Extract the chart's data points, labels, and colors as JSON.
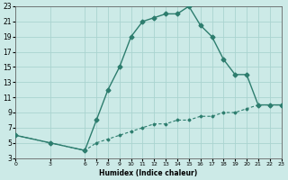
{
  "title": "",
  "xlabel": "Humidex (Indice chaleur)",
  "xlim": [
    0,
    23
  ],
  "ylim": [
    3,
    23
  ],
  "xticks": [
    0,
    3,
    6,
    7,
    8,
    9,
    10,
    11,
    12,
    13,
    14,
    15,
    16,
    17,
    18,
    19,
    20,
    21,
    22,
    23
  ],
  "yticks": [
    3,
    5,
    7,
    9,
    11,
    13,
    15,
    17,
    19,
    21,
    23
  ],
  "line1_x": [
    0,
    3,
    6,
    7,
    8,
    9,
    10,
    11,
    12,
    13,
    14,
    15,
    16,
    17,
    18,
    19,
    20,
    21,
    22,
    23
  ],
  "line1_y": [
    6,
    5,
    4,
    8,
    12,
    15,
    19,
    21,
    21.5,
    22,
    22,
    23,
    20.5,
    19,
    16,
    14,
    14,
    10,
    10,
    10
  ],
  "line2_x": [
    0,
    3,
    6,
    7,
    8,
    9,
    10,
    11,
    12,
    13,
    14,
    15,
    16,
    17,
    18,
    19,
    20,
    21,
    22,
    23
  ],
  "line2_y": [
    6,
    5,
    4,
    5,
    5.5,
    6,
    6.5,
    7,
    7.5,
    7.5,
    8,
    8,
    8.5,
    8.5,
    9,
    9,
    9.5,
    10,
    10,
    10
  ],
  "line_color": "#2d7d6e",
  "bg_color": "#cceae7",
  "grid_color": "#aad4d0",
  "marker": "D",
  "marker_size": 2.5,
  "line_width": 1.0
}
